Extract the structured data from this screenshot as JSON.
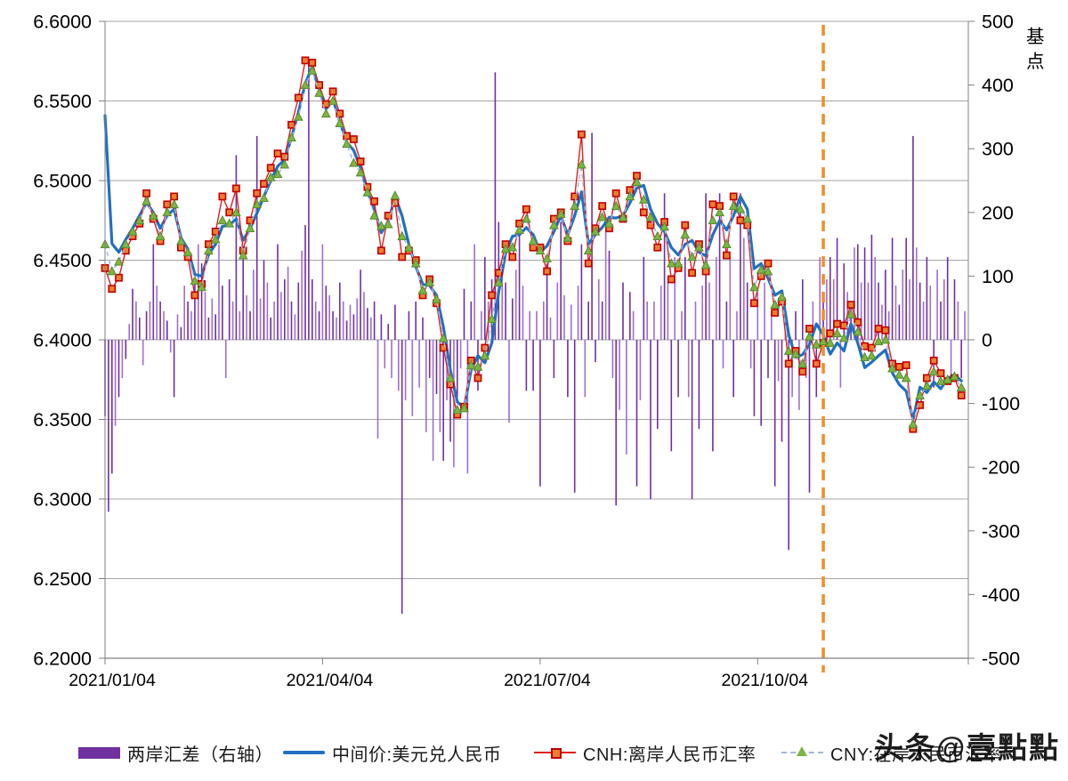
{
  "watermark": {
    "text": "头条@壹點點"
  },
  "legend": {
    "items": [
      {
        "label": "两岸汇差（右轴）",
        "series": "bars"
      },
      {
        "label": "中间价:美元兑人民币",
        "series": "mid"
      },
      {
        "label": "CNH:离岸人民币汇率",
        "series": "cnh"
      },
      {
        "label": "CNY:在岸人民币汇率",
        "series": "cny"
      }
    ]
  },
  "chart_data": {
    "type": "combo",
    "subtype": "bar+line",
    "grid": "horizontal-on",
    "legend_position": "bottom",
    "x_axis": {
      "tick_labels": [
        "2021/01/04",
        "2021/04/04",
        "2021/07/04",
        "2021/10/04"
      ],
      "tick_days": [
        0,
        63,
        126,
        189
      ],
      "total_days": 250
    },
    "left_axis": {
      "min": 6.2,
      "max": 6.6,
      "step": 0.05,
      "tick_labels": [
        "6.6000",
        "6.5500",
        "6.5000",
        "6.4500",
        "6.4000",
        "6.3500",
        "6.3000",
        "6.2500",
        "6.2000"
      ]
    },
    "right_axis": {
      "min": -500,
      "max": 500,
      "step": 100,
      "label": "基点",
      "tick_labels": [
        "500",
        "400",
        "300",
        "200",
        "100",
        "0",
        "-100",
        "-200",
        "-300",
        "-400",
        "-500"
      ]
    },
    "event_line": {
      "day": 208,
      "style": "dashed-vertical"
    },
    "colors": {
      "bar_dark": "#7030A0",
      "bar_light": "#9F6FD0",
      "mid": "#2170C0",
      "cnh_line": "#E01F1F",
      "cnh_marker_fill": "#ED7D31",
      "cnh_marker_stroke": "#C00000",
      "cny_line": "#A3B8D8",
      "cny_marker_fill": "#7FB542",
      "cny_marker_stroke": "#5A8F35",
      "event": "#F0912D",
      "grid": "#A6A6A6",
      "axis": "#808080",
      "text": "#000000"
    },
    "series": [
      {
        "name": "两岸汇差（右轴）",
        "type": "bar",
        "axis": "right",
        "unit": "bp",
        "day_step": 1,
        "values": [
          -120,
          -270,
          -210,
          -135,
          -90,
          -60,
          -30,
          25,
          80,
          60,
          35,
          -40,
          45,
          60,
          150,
          85,
          60,
          45,
          30,
          -20,
          -90,
          40,
          20,
          85,
          60,
          45,
          90,
          150,
          120,
          75,
          35,
          65,
          40,
          150,
          85,
          -60,
          95,
          60,
          290,
          45,
          130,
          70,
          45,
          110,
          320,
          65,
          125,
          90,
          35,
          60,
          150,
          75,
          95,
          115,
          60,
          40,
          90,
          140,
          180,
          440,
          95,
          60,
          45,
          150,
          85,
          70,
          45,
          35,
          90,
          60,
          30,
          55,
          40,
          65,
          110,
          75,
          50,
          35,
          60,
          -155,
          40,
          -45,
          25,
          -60,
          55,
          -80,
          -430,
          -95,
          45,
          -120,
          60,
          -75,
          35,
          -145,
          -60,
          -190,
          -85,
          -145,
          -190,
          -95,
          -160,
          -200,
          -90,
          -45,
          80,
          -210,
          60,
          150,
          -80,
          45,
          130,
          60,
          95,
          420,
          185,
          120,
          90,
          -130,
          65,
          110,
          170,
          85,
          -80,
          45,
          -80,
          45,
          -230,
          60,
          120,
          35,
          -60,
          90,
          185,
          70,
          -90,
          55,
          -240,
          85,
          150,
          -90,
          60,
          325,
          -35,
          95,
          60,
          170,
          140,
          -60,
          -260,
          -110,
          90,
          -180,
          75,
          45,
          -230,
          -95,
          130,
          60,
          -250,
          60,
          -140,
          85,
          230,
          90,
          -175,
          130,
          -90,
          45,
          130,
          -90,
          -250,
          60,
          -140,
          85,
          230,
          90,
          -175,
          130,
          230,
          -45,
          60,
          130,
          -90,
          45,
          230,
          160,
          90,
          -45,
          -120,
          75,
          -135,
          90,
          -60,
          45,
          -230,
          -65,
          -160,
          45,
          -330,
          -90,
          45,
          -110,
          95,
          -60,
          -240,
          60,
          -90,
          130,
          60,
          95,
          130,
          95,
          160,
          -75,
          120,
          75,
          60,
          145,
          150,
          90,
          145,
          90,
          165,
          130,
          90,
          55,
          110,
          45,
          160,
          85,
          55,
          110,
          160,
          95,
          320,
          145,
          90,
          60,
          130,
          85,
          -75,
          110,
          60,
          95,
          130,
          -60,
          95,
          60,
          -60,
          45
        ]
      },
      {
        "name": "中间价:美元兑人民币",
        "type": "line",
        "axis": "left",
        "day_step": 2,
        "values": [
          6.5408,
          6.4604,
          6.455,
          6.463,
          6.47,
          6.478,
          6.4862,
          6.48,
          6.47,
          6.478,
          6.482,
          6.464,
          6.457,
          6.441,
          6.44,
          6.4536,
          6.46,
          6.4713,
          6.472,
          6.476,
          6.4625,
          6.47,
          6.4795,
          6.49,
          6.5,
          6.509,
          6.513,
          6.527,
          6.543,
          6.561,
          6.5713,
          6.557,
          6.545,
          6.551,
          6.537,
          6.524,
          6.519,
          6.508,
          6.493,
          6.482,
          6.4672,
          6.474,
          6.49,
          6.478,
          6.46,
          6.446,
          6.435,
          6.434,
          6.428,
          6.408,
          6.381,
          6.361,
          6.3572,
          6.381,
          6.39,
          6.3856,
          6.398,
          6.43,
          6.4546,
          6.465,
          6.466,
          6.4705,
          6.466,
          6.455,
          6.459,
          6.468,
          6.478,
          6.466,
          6.478,
          6.4929,
          6.4602,
          6.466,
          6.4706,
          6.477,
          6.4765,
          6.478,
          6.486,
          6.4954,
          6.497,
          6.482,
          6.473,
          6.4679,
          6.458,
          6.4533,
          6.46,
          6.4624,
          6.455,
          6.4527,
          6.466,
          6.4749,
          6.469,
          6.478,
          6.49,
          6.482,
          6.4447,
          6.4479,
          6.4386,
          6.428,
          6.4307,
          6.4032,
          6.389,
          6.3907,
          6.397,
          6.41,
          6.403,
          6.391,
          6.398,
          6.393,
          6.41,
          6.398,
          6.3825,
          6.386,
          6.39,
          6.3936,
          6.3793,
          6.3719,
          6.3677,
          6.3498,
          6.3702,
          6.3669,
          6.3735,
          6.3693,
          6.3757,
          6.378,
          6.3742
        ]
      },
      {
        "name": "CNH:离岸人民币汇率",
        "type": "line-square-markers",
        "axis": "left",
        "day_step": 2,
        "values": [
          6.445,
          6.432,
          6.439,
          6.456,
          6.465,
          6.473,
          6.492,
          6.476,
          6.462,
          6.485,
          6.49,
          6.458,
          6.452,
          6.428,
          6.435,
          6.46,
          6.468,
          6.49,
          6.48,
          6.495,
          6.456,
          6.475,
          6.492,
          6.498,
          6.508,
          6.517,
          6.515,
          6.535,
          6.552,
          6.5755,
          6.574,
          6.56,
          6.548,
          6.556,
          6.542,
          6.528,
          6.526,
          6.512,
          6.496,
          6.487,
          6.456,
          6.478,
          6.486,
          6.452,
          6.456,
          6.45,
          6.428,
          6.438,
          6.423,
          6.395,
          6.372,
          6.353,
          6.358,
          6.387,
          6.376,
          6.395,
          6.428,
          6.442,
          6.46,
          6.452,
          6.473,
          6.482,
          6.458,
          6.458,
          6.443,
          6.476,
          6.48,
          6.462,
          6.49,
          6.529,
          6.448,
          6.47,
          6.484,
          6.47,
          6.492,
          6.476,
          6.494,
          6.503,
          6.48,
          6.472,
          6.458,
          6.474,
          6.438,
          6.445,
          6.472,
          6.442,
          6.46,
          6.443,
          6.485,
          6.484,
          6.453,
          6.49,
          6.475,
          6.472,
          6.423,
          6.44,
          6.448,
          6.417,
          6.424,
          6.385,
          6.393,
          6.38,
          6.407,
          6.385,
          6.398,
          6.404,
          6.41,
          6.409,
          6.422,
          6.411,
          6.396,
          6.395,
          6.407,
          6.406,
          6.385,
          6.383,
          6.384,
          6.344,
          6.359,
          6.376,
          6.387,
          6.379,
          6.374,
          6.376,
          6.365
        ]
      },
      {
        "name": "CNY:在岸人民币汇率",
        "type": "dashed-line-triangle-markers",
        "axis": "left",
        "day_step": 2,
        "values": [
          6.46,
          6.443,
          6.449,
          6.46,
          6.468,
          6.475,
          6.487,
          6.478,
          6.465,
          6.48,
          6.485,
          6.462,
          6.455,
          6.437,
          6.433,
          6.456,
          6.463,
          6.475,
          6.473,
          6.48,
          6.453,
          6.47,
          6.485,
          6.489,
          6.502,
          6.504,
          6.51,
          6.527,
          6.54,
          6.56,
          6.569,
          6.555,
          6.542,
          6.55,
          6.536,
          6.523,
          6.511,
          6.505,
          6.4925,
          6.478,
          6.4715,
          6.4725,
          6.4905,
          6.465,
          6.458,
          6.448,
          6.431,
          6.436,
          6.4255,
          6.401,
          6.376,
          6.356,
          6.357,
          6.384,
          6.383,
          6.39,
          6.413,
          6.436,
          6.457,
          6.458,
          6.469,
          6.476,
          6.462,
          6.456,
          6.451,
          6.472,
          6.479,
          6.464,
          6.484,
          6.51,
          6.456,
          6.468,
          6.477,
          6.473,
          6.484,
          6.477,
          6.49,
          6.499,
          6.488,
          6.477,
          6.465,
          6.471,
          6.448,
          6.448,
          6.466,
          6.452,
          6.458,
          6.447,
          6.475,
          6.48,
          6.46,
          6.484,
          6.482,
          6.476,
          6.433,
          6.444,
          6.443,
          6.422,
          6.427,
          6.393,
          6.391,
          6.385,
          6.402,
          6.397,
          6.399,
          6.398,
          6.404,
          6.401,
          6.416,
          6.405,
          6.389,
          6.39,
          6.399,
          6.4,
          6.382,
          6.378,
          6.376,
          6.347,
          6.365,
          6.371,
          6.38,
          6.374,
          6.375,
          6.377,
          6.37
        ]
      }
    ]
  }
}
